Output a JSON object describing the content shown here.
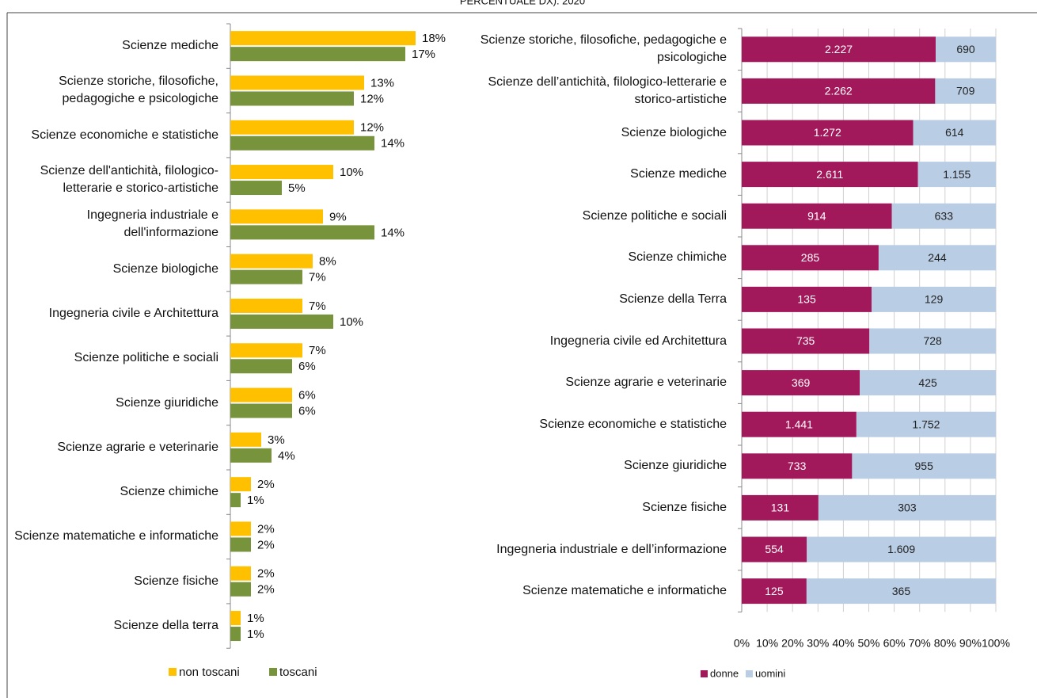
{
  "title": "PERCENTUALE DX). 2020",
  "chart_data": [
    {
      "type": "hbar",
      "categories": [
        "Scienze mediche",
        "Scienze storiche, filosofiche, pedagogiche e psicologiche",
        "Scienze economiche e statistiche",
        "Scienze dell'antichità, filologico-letterarie e storico-artistiche",
        "Ingegneria industriale e dell'informazione",
        "Scienze biologiche",
        "Ingegneria civile e Architettura",
        "Scienze politiche e sociali",
        "Scienze giuridiche",
        "Scienze agrarie e veterinarie",
        "Scienze chimiche",
        "Scienze matematiche e informatiche",
        "Scienze fisiche",
        "Scienze della terra"
      ],
      "series": [
        {
          "name": "non toscani",
          "color": "#ffc000",
          "values": [
            18,
            13,
            12,
            10,
            9,
            8,
            7,
            7,
            6,
            3,
            2,
            2,
            2,
            1
          ],
          "value_labels": [
            "18%",
            "13%",
            "12%",
            "10%",
            "9%",
            "8%",
            "7%",
            "7%",
            "6%",
            "3%",
            "2%",
            "2%",
            "2%",
            "1%"
          ]
        },
        {
          "name": "toscani",
          "color": "#77933c",
          "values": [
            17,
            12,
            14,
            5,
            14,
            7,
            10,
            6,
            6,
            4,
            1,
            2,
            2,
            1
          ],
          "value_labels": [
            "17%",
            "12%",
            "14%",
            "5%",
            "14%",
            "7%",
            "10%",
            "6%",
            "6%",
            "4%",
            "1%",
            "2%",
            "2%",
            "1%"
          ]
        }
      ]
    },
    {
      "type": "stacked100",
      "categories": [
        "Scienze storiche, filosofiche, pedagogiche e psicologiche",
        "Scienze dell’antichità, filologico-letterarie e storico-artistiche",
        "Scienze biologiche",
        "Scienze mediche",
        "Scienze politiche e sociali",
        "Scienze chimiche",
        "Scienze della Terra",
        "Ingegneria civile ed Architettura",
        "Scienze agrarie e veterinarie",
        "Scienze economiche e statistiche",
        "Scienze giuridiche",
        "Scienze fisiche",
        "Ingegneria industriale e dell’informazione",
        "Scienze matematiche e informatiche"
      ],
      "series": [
        {
          "name": "donne",
          "color": "#a2195b",
          "values": [
            2227,
            2262,
            1272,
            2611,
            914,
            285,
            135,
            735,
            369,
            1441,
            733,
            131,
            554,
            125
          ],
          "value_labels": [
            "2.227",
            "2.262",
            "1.272",
            "2.611",
            "914",
            "285",
            "135",
            "735",
            "369",
            "1.441",
            "733",
            "131",
            "554",
            "125"
          ]
        },
        {
          "name": "uomini",
          "color": "#b9cde5",
          "values": [
            690,
            709,
            614,
            1155,
            633,
            244,
            129,
            728,
            425,
            1752,
            955,
            303,
            1609,
            365
          ],
          "value_labels": [
            "690",
            "709",
            "614",
            "1.155",
            "633",
            "244",
            "129",
            "728",
            "425",
            "1.752",
            "955",
            "303",
            "1.609",
            "365"
          ]
        }
      ],
      "xlim": [
        0,
        100
      ],
      "xticks": [
        {
          "value": 0,
          "label": "0%"
        },
        {
          "value": 10,
          "label": "10%"
        },
        {
          "value": 20,
          "label": "20%"
        },
        {
          "value": 30,
          "label": "30%"
        },
        {
          "value": 40,
          "label": "40%"
        },
        {
          "value": 50,
          "label": "50%"
        },
        {
          "value": 60,
          "label": "60%"
        },
        {
          "value": 70,
          "label": "70%"
        },
        {
          "value": 80,
          "label": "80%"
        },
        {
          "value": 90,
          "label": "90%"
        },
        {
          "value": 100,
          "label": "100%"
        }
      ],
      "grid": true
    }
  ]
}
